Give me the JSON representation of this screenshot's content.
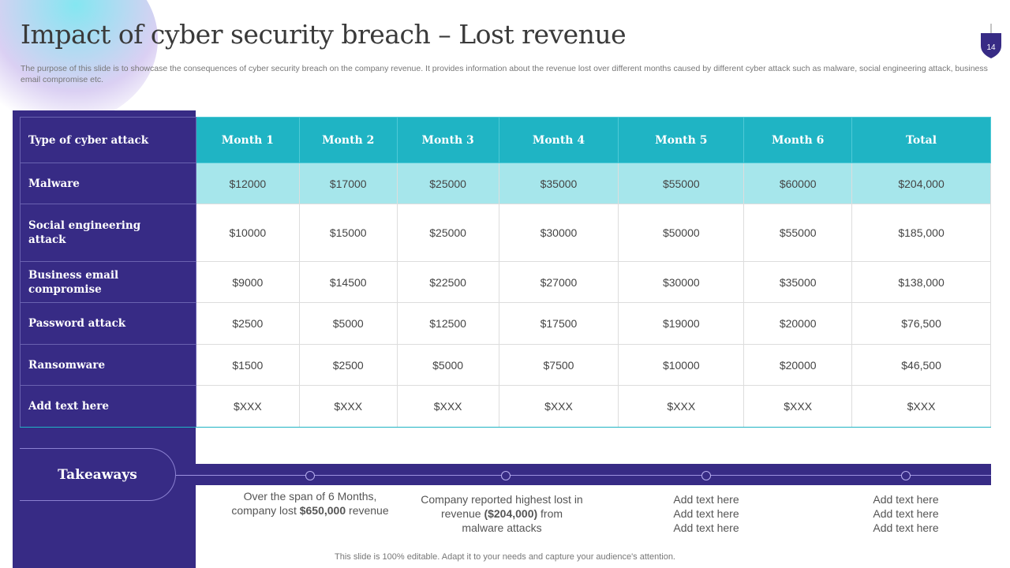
{
  "title": "Impact of cyber security breach – Lost revenue",
  "subtitle": "The purpose of this slide is to showcase the consequences of cyber security breach on the company revenue. It provides information about the revenue lost over different months caused by different cyber attack such as malware, social engineering attack, business email compromise etc.",
  "page_number": "14",
  "colors": {
    "primary": "#372b85",
    "accent": "#1fb4c4",
    "highlight": "#a6e6eb"
  },
  "table": {
    "headers": [
      "Type of cyber attack",
      "Month 1",
      "Month 2",
      "Month 3",
      "Month 4",
      "Month 5",
      "Month 6",
      "Total"
    ],
    "rows": [
      {
        "label": "Malware",
        "values": [
          "$12000",
          "$17000",
          "$25000",
          "$35000",
          "$55000",
          "$60000",
          "$204,000"
        ]
      },
      {
        "label": "Social engineering attack",
        "values": [
          "$10000",
          "$15000",
          "$25000",
          "$30000",
          "$50000",
          "$55000",
          "$185,000"
        ]
      },
      {
        "label": "Business email compromise",
        "values": [
          "$9000",
          "$14500",
          "$22500",
          "$27000",
          "$30000",
          "$35000",
          "$138,000"
        ]
      },
      {
        "label": "Password attack",
        "values": [
          "$2500",
          "$5000",
          "$12500",
          "$17500",
          "$19000",
          "$20000",
          "$76,500"
        ]
      },
      {
        "label": "Ransomware",
        "values": [
          "$1500",
          "$2500",
          "$5000",
          "$7500",
          "$10000",
          "$20000",
          "$46,500"
        ]
      },
      {
        "label": "Add text here",
        "values": [
          "$XXX",
          "$XXX",
          "$XXX",
          "$XXX",
          "$XXX",
          "$XXX",
          "$XXX"
        ]
      }
    ]
  },
  "takeaways": {
    "label": "Takeaways",
    "items": [
      {
        "pre": "Over the span of 6 Months, company lost ",
        "bold": "$650,000",
        "post": " revenue"
      },
      {
        "pre": "Company reported highest lost in revenue ",
        "bold": "($204,000)",
        "post": " from malware attacks"
      },
      {
        "pre": "Add text here Add text here Add text here",
        "bold": "",
        "post": ""
      },
      {
        "pre": "Add text here Add text here Add text here",
        "bold": "",
        "post": ""
      }
    ]
  },
  "footer": "This slide is 100% editable. Adapt it to your needs and capture your audience's attention."
}
